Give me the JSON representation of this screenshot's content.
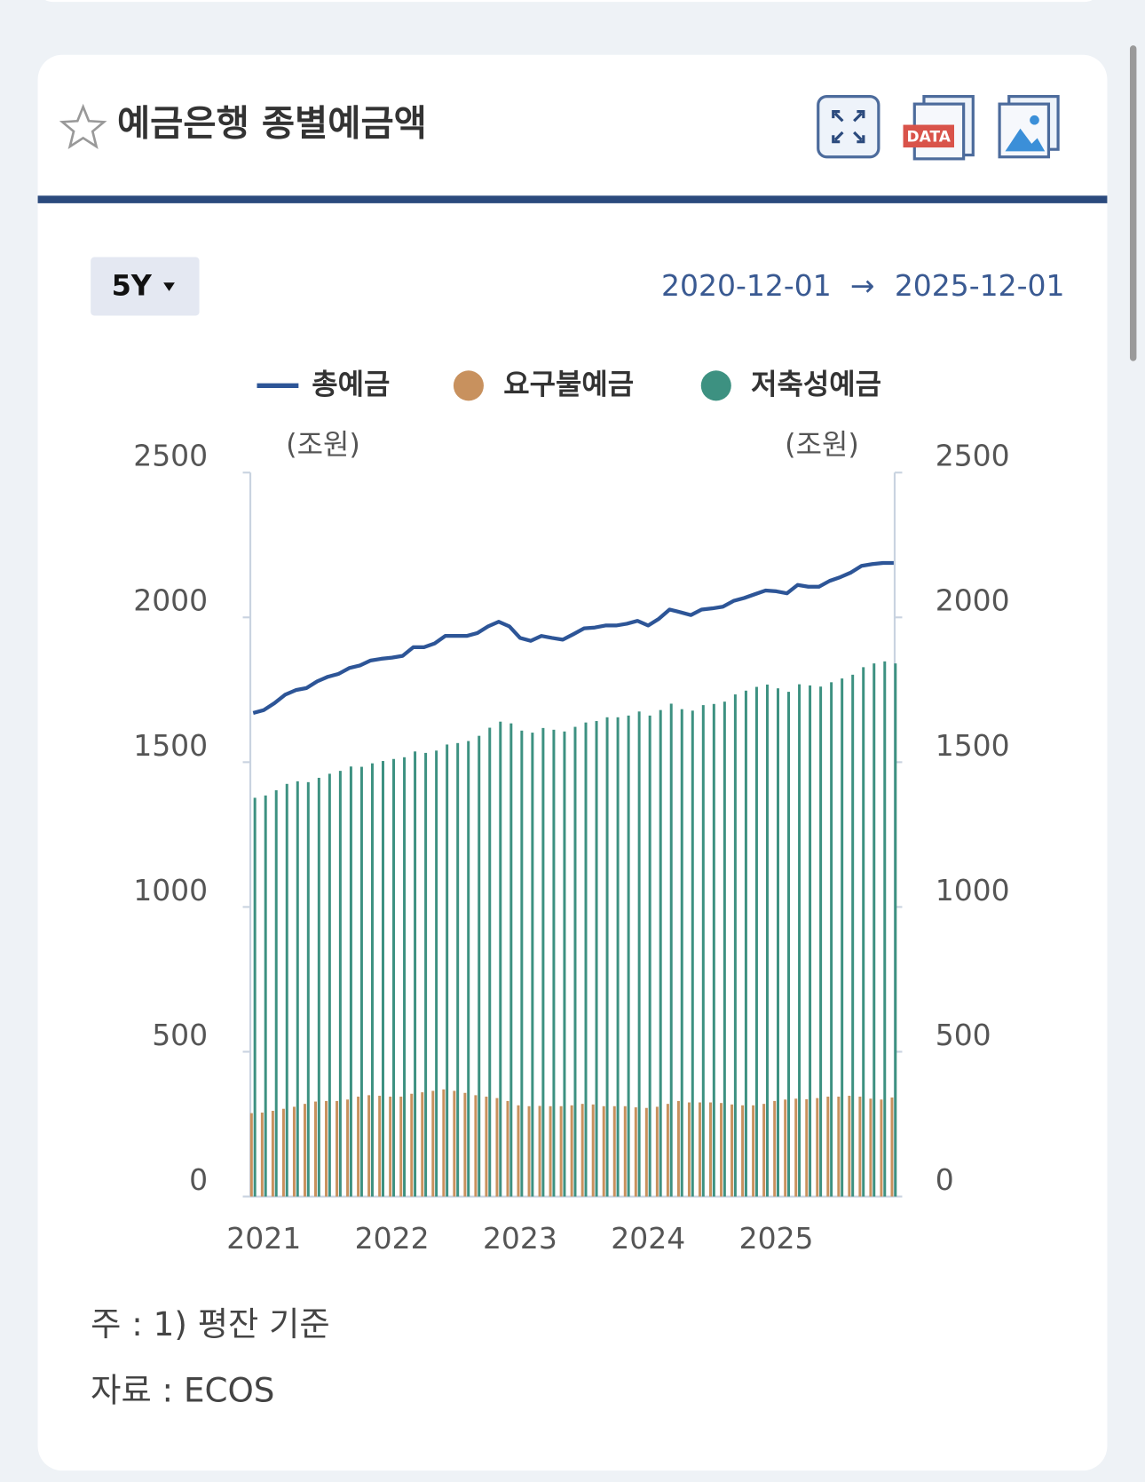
{
  "header": {
    "title": "예금은행 종별예금액",
    "data_icon_label": "DATA"
  },
  "controls": {
    "period": "5Y",
    "start_date": "2020-12-01",
    "arrow": "→",
    "end_date": "2025-12-01"
  },
  "chart_data": {
    "type": "bar",
    "y_unit": "(조원)",
    "y2_unit": "(조원)",
    "categories": [
      null,
      "2021",
      null,
      null,
      null,
      null,
      null,
      null,
      null,
      null,
      null,
      null,
      null,
      "2022",
      null,
      null,
      null,
      null,
      null,
      null,
      null,
      null,
      null,
      null,
      null,
      "2023",
      null,
      null,
      null,
      null,
      null,
      null,
      null,
      null,
      null,
      null,
      null,
      "2024",
      null,
      null,
      null,
      null,
      null,
      null,
      null,
      null,
      null,
      null,
      null,
      "2025",
      null,
      null,
      null,
      null,
      null,
      null,
      null,
      null,
      null,
      null,
      null
    ],
    "series": [
      {
        "name": "총예금",
        "type": "line",
        "color": "#2d5597",
        "values": [
          1670,
          1680,
          1704,
          1733,
          1749,
          1756,
          1779,
          1795,
          1805,
          1825,
          1834,
          1851,
          1857,
          1861,
          1867,
          1897,
          1897,
          1910,
          1936,
          1936,
          1936,
          1946,
          1969,
          1985,
          1969,
          1929,
          1919,
          1936,
          1929,
          1923,
          1942,
          1962,
          1965,
          1972,
          1972,
          1978,
          1988,
          1972,
          1995,
          2027,
          2018,
          2008,
          2027,
          2031,
          2037,
          2057,
          2067,
          2080,
          2093,
          2090,
          2083,
          2112,
          2106,
          2106,
          2126,
          2139,
          2155,
          2178,
          2184,
          2188,
          2188
        ]
      },
      {
        "name": "요구불예금",
        "type": "bar",
        "color": "#c8915e",
        "values": [
          288,
          290,
          296,
          303,
          310,
          320,
          328,
          330,
          330,
          335,
          345,
          350,
          348,
          345,
          345,
          355,
          360,
          365,
          370,
          365,
          358,
          350,
          345,
          340,
          330,
          315,
          312,
          313,
          312,
          312,
          315,
          320,
          318,
          312,
          312,
          312,
          308,
          306,
          310,
          320,
          330,
          325,
          325,
          325,
          323,
          318,
          315,
          315,
          320,
          330,
          335,
          338,
          336,
          340,
          345,
          345,
          348,
          345,
          338,
          335,
          342
        ]
      },
      {
        "name": "저축성예금",
        "type": "bar",
        "color": "#3d9181",
        "values": [
          1377,
          1385,
          1403,
          1425,
          1434,
          1431,
          1446,
          1460,
          1470,
          1485,
          1484,
          1496,
          1504,
          1511,
          1517,
          1537,
          1532,
          1540,
          1561,
          1566,
          1573,
          1591,
          1619,
          1640,
          1634,
          1609,
          1602,
          1618,
          1612,
          1606,
          1622,
          1637,
          1642,
          1655,
          1655,
          1661,
          1675,
          1661,
          1680,
          1702,
          1683,
          1678,
          1697,
          1701,
          1709,
          1734,
          1747,
          1760,
          1768,
          1755,
          1743,
          1769,
          1765,
          1761,
          1776,
          1789,
          1802,
          1828,
          1841,
          1848,
          1841
        ]
      }
    ],
    "ylim": [
      0,
      2500
    ],
    "yticks": [
      0,
      500,
      1000,
      1500,
      2000,
      2500
    ],
    "y2lim": [
      0,
      2500
    ],
    "y2ticks": [
      0,
      500,
      1000,
      1500,
      2000,
      2500
    ]
  },
  "notes": {
    "note": "주 : 1)  평잔 기준",
    "source": "자료 :  ECOS"
  }
}
